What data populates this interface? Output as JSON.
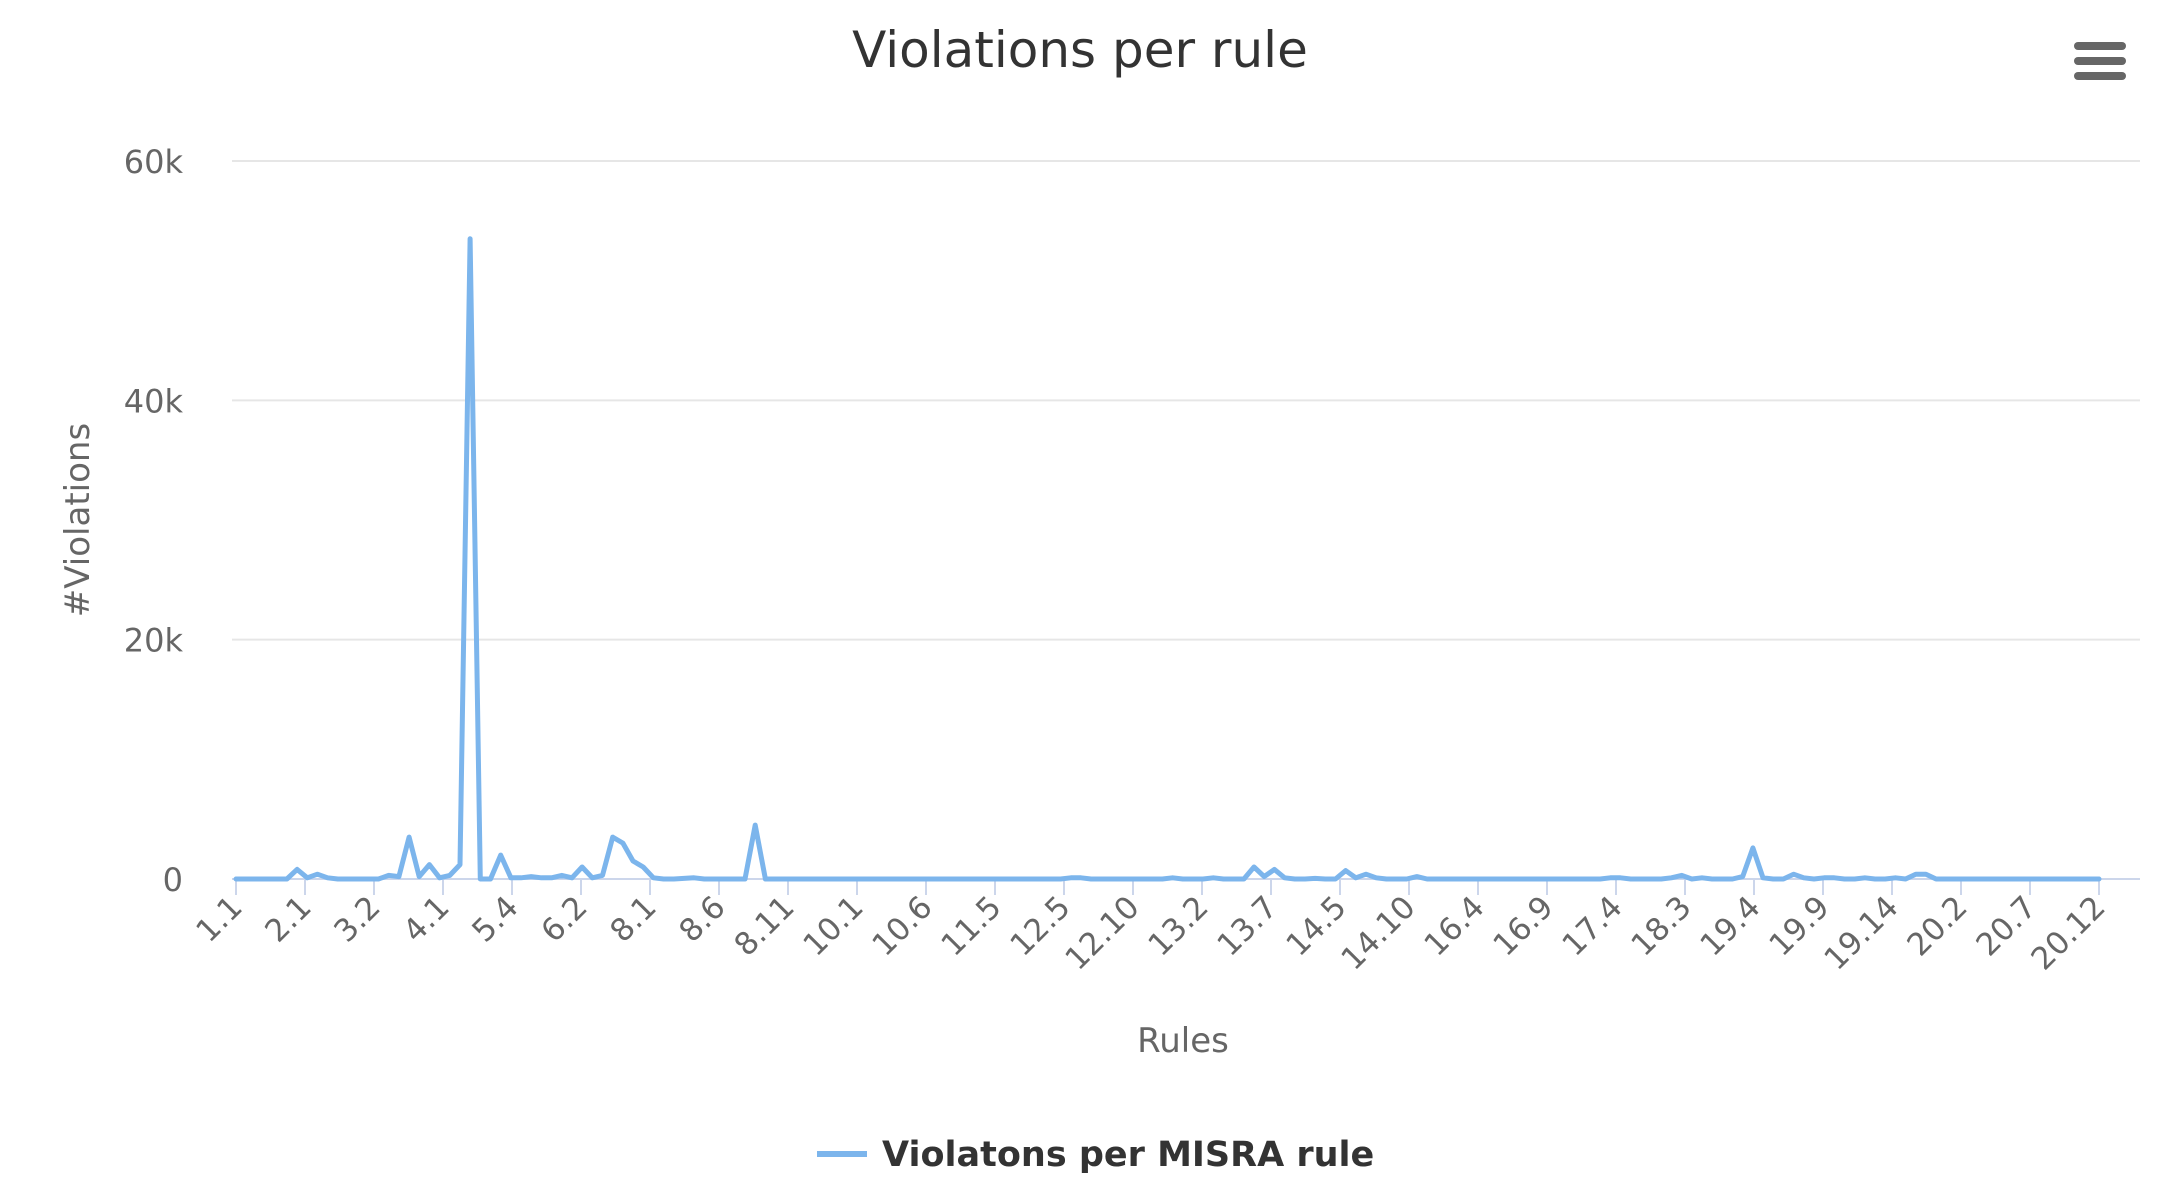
{
  "chart_data": {
    "type": "line",
    "title": "Violations per rule",
    "xlabel": "Rules",
    "ylabel": "#Violations",
    "ylim": [
      0,
      60000
    ],
    "y_ticks": [
      "0",
      "20k",
      "40k",
      "60k"
    ],
    "y_tick_values": [
      0,
      20000,
      40000,
      60000
    ],
    "legend_position": "bottom-center",
    "grid": true,
    "x_tick_labels": [
      "1.1",
      "2.1",
      "3.2",
      "4.1",
      "5.4",
      "6.2",
      "8.1",
      "8.6",
      "8.11",
      "10.1",
      "10.6",
      "11.5",
      "12.5",
      "12.10",
      "13.2",
      "13.7",
      "14.5",
      "14.10",
      "16.4",
      "16.9",
      "17.4",
      "18.3",
      "19.4",
      "19.9",
      "19.14",
      "20.2",
      "20.7",
      "20.12"
    ],
    "series": [
      {
        "name": "Violatons per MISRA rule",
        "color": "#7cb5ec",
        "values": [
          0,
          0,
          0,
          0,
          0,
          0,
          800,
          100,
          400,
          100,
          0,
          0,
          0,
          0,
          0,
          300,
          200,
          3500,
          200,
          1200,
          100,
          300,
          1200,
          53500,
          0,
          0,
          2000,
          100,
          100,
          200,
          100,
          100,
          300,
          100,
          1000,
          100,
          300,
          3500,
          3000,
          1500,
          1000,
          100,
          0,
          0,
          50,
          100,
          0,
          0,
          0,
          0,
          0,
          4500,
          0,
          0,
          0,
          0,
          0,
          0,
          0,
          0,
          0,
          0,
          0,
          0,
          0,
          0,
          0,
          0,
          0,
          0,
          0,
          0,
          0,
          0,
          0,
          0,
          0,
          0,
          0,
          0,
          0,
          0,
          100,
          100,
          0,
          0,
          0,
          0,
          0,
          0,
          0,
          0,
          100,
          0,
          0,
          0,
          100,
          0,
          0,
          0,
          1000,
          200,
          800,
          100,
          0,
          0,
          50,
          0,
          0,
          700,
          100,
          400,
          100,
          0,
          0,
          0,
          200,
          0,
          0,
          0,
          0,
          0,
          0,
          0,
          0,
          0,
          0,
          0,
          0,
          0,
          0,
          0,
          0,
          0,
          0,
          100,
          100,
          0,
          0,
          0,
          0,
          100,
          300,
          0,
          100,
          0,
          0,
          0,
          200,
          2600,
          100,
          0,
          0,
          400,
          100,
          0,
          100,
          100,
          0,
          0,
          100,
          0,
          0,
          100,
          0,
          400,
          400,
          0,
          0,
          0,
          0,
          0,
          0,
          0,
          0,
          0,
          0,
          0,
          0,
          0,
          0,
          0,
          0,
          0
        ]
      }
    ]
  },
  "menu": {
    "icon": "hamburger-menu-icon",
    "color": "#666666"
  }
}
